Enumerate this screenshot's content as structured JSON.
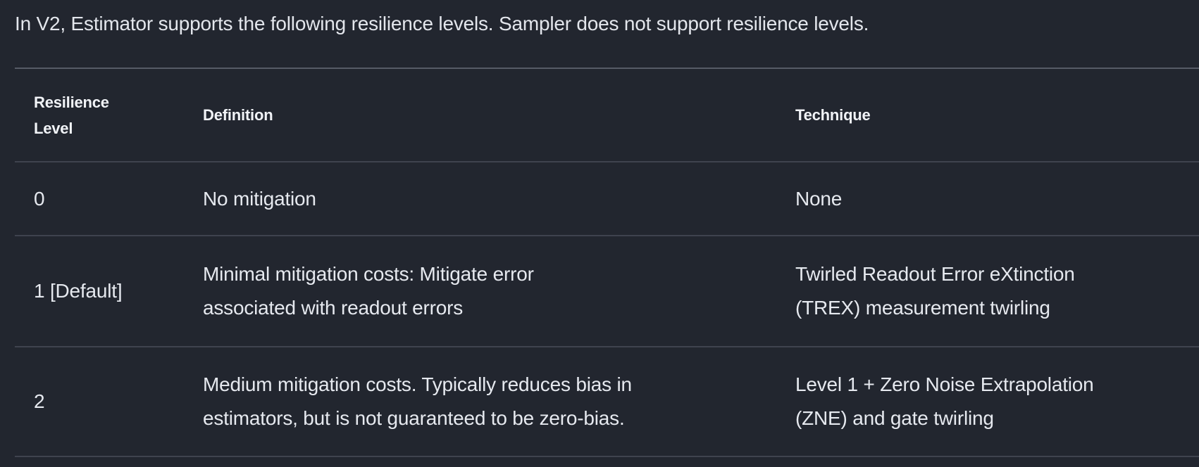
{
  "colors": {
    "background": "#22262f",
    "body_text": "#e6e9ef",
    "header_text": "#f1f3f7",
    "table_top_border": "#565b66",
    "row_divider": "#3f434e"
  },
  "intro": {
    "text": "In V2, Estimator supports the following resilience levels. Sampler does not support resilience levels."
  },
  "table": {
    "columns": [
      {
        "label": "Resilience\nLevel"
      },
      {
        "label": "Definition"
      },
      {
        "label": "Technique"
      }
    ],
    "rows": [
      {
        "level": "0",
        "definition": "No mitigation",
        "technique": "None"
      },
      {
        "level": "1 [Default]",
        "definition": "Minimal mitigation costs: Mitigate error\nassociated with readout errors",
        "technique": "Twirled Readout Error eXtinction\n(TREX) measurement twirling"
      },
      {
        "level": "2",
        "definition": "Medium mitigation costs. Typically reduces bias in\nestimators, but is not guaranteed to be zero-bias.",
        "technique": "Level 1 + Zero Noise Extrapolation\n(ZNE) and gate twirling"
      }
    ]
  }
}
